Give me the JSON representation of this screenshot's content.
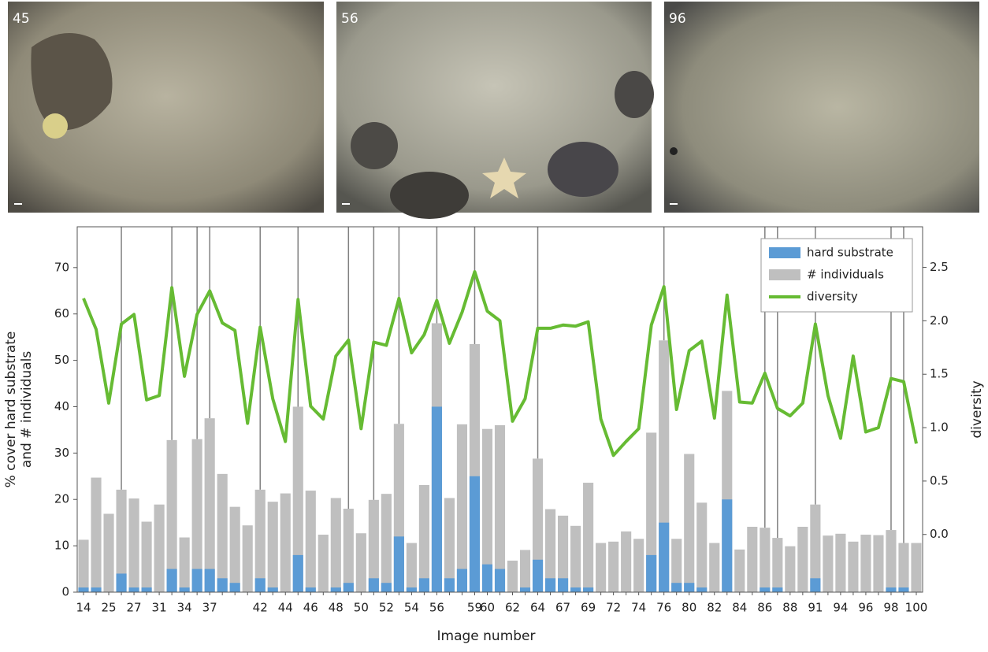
{
  "photos": [
    {
      "label": "45"
    },
    {
      "label": "56"
    },
    {
      "label": "96"
    }
  ],
  "chart_data": {
    "type": "bar",
    "xlabel": "Image number",
    "ylabel": [
      "% cover hard substrate",
      "and # individuals"
    ],
    "y2label": "diversity",
    "categories": [
      "14",
      null,
      "25",
      null,
      "27",
      null,
      "31",
      null,
      "34",
      null,
      "37",
      null,
      null,
      null,
      "42",
      null,
      "44",
      null,
      "46",
      null,
      "48",
      null,
      "50",
      null,
      "52",
      null,
      "54",
      null,
      "56",
      null,
      null,
      "59",
      "60",
      null,
      "62",
      null,
      "64",
      null,
      "67",
      null,
      "69",
      null,
      "72",
      null,
      "74",
      null,
      "76",
      null,
      "80",
      null,
      "82",
      null,
      "84",
      null,
      "86",
      null,
      "88",
      null,
      "91",
      null,
      "94",
      null,
      "96",
      null,
      "98",
      null,
      "100"
    ],
    "series": [
      {
        "name": "# individuals",
        "color": "#bfbfbf",
        "kind": "bar",
        "values": [
          11.3,
          24.7,
          16.9,
          22.1,
          20.2,
          15.2,
          18.9,
          32.8,
          11.8,
          33,
          37.5,
          25.5,
          18.4,
          14.4,
          22.1,
          19.5,
          21.3,
          40,
          21.9,
          12.4,
          20.3,
          18,
          12.7,
          19.9,
          21.2,
          36.3,
          10.6,
          23.1,
          58,
          20.3,
          36.2,
          53.5,
          35.2,
          36,
          6.8,
          9.1,
          28.8,
          17.9,
          16.5,
          14.3,
          23.6,
          10.6,
          10.9,
          13.1,
          11.5,
          34.4,
          54.3,
          11.5,
          29.8,
          19.3,
          10.6,
          43.4,
          9.2,
          14.1,
          13.9,
          11.7,
          9.9,
          14.1,
          18.9,
          12.2,
          12.6,
          10.9,
          12.4,
          12.3,
          13.4,
          10.6,
          10.6
        ]
      },
      {
        "name": "hard substrate",
        "color": "#5b9bd5",
        "kind": "bar",
        "values": [
          1,
          1,
          0,
          4,
          1,
          1,
          0,
          5,
          1,
          5,
          5,
          3,
          2,
          0,
          3,
          1,
          0,
          8,
          1,
          0,
          1,
          2,
          0,
          3,
          2,
          12,
          1,
          3,
          40,
          3,
          5,
          25,
          6,
          5,
          0,
          1,
          7,
          3,
          3,
          1,
          1,
          0,
          0,
          0,
          0,
          8,
          15,
          2,
          2,
          1,
          0,
          20,
          0,
          0,
          1,
          1,
          0,
          0,
          3,
          0,
          0,
          0,
          0,
          0,
          1,
          1,
          0
        ]
      },
      {
        "name": "diversity",
        "color": "#66bb33",
        "kind": "line",
        "axis": "y2",
        "values": [
          2.21,
          1.92,
          1.23,
          1.97,
          2.06,
          1.26,
          1.3,
          2.31,
          1.48,
          2.06,
          2.28,
          1.98,
          1.91,
          1.04,
          1.94,
          1.27,
          0.87,
          2.2,
          1.2,
          1.08,
          1.67,
          1.82,
          0.99,
          1.8,
          1.77,
          2.21,
          1.7,
          1.87,
          2.19,
          1.79,
          2.08,
          2.46,
          2.09,
          2.0,
          1.06,
          1.27,
          1.93,
          1.93,
          1.96,
          1.95,
          1.99,
          1.08,
          0.74,
          0.87,
          0.99,
          1.96,
          2.32,
          1.17,
          1.72,
          1.81,
          1.09,
          2.24,
          1.24,
          1.23,
          1.51,
          1.18,
          1.11,
          1.23,
          1.97,
          1.3,
          0.9,
          1.67,
          0.96,
          1.0,
          1.46,
          1.43,
          0.85
        ]
      }
    ],
    "legend_order": [
      1,
      0,
      2
    ],
    "highlighted_bars": [
      3,
      7,
      9,
      10,
      14,
      17,
      21,
      23,
      25,
      28,
      31,
      36,
      46,
      54,
      55,
      58,
      64,
      65
    ],
    "ylim": [
      0,
      78.8
    ],
    "yticks": [
      0,
      10,
      20,
      30,
      40,
      50,
      60,
      70
    ],
    "y2lim": [
      -0.54,
      2.88
    ],
    "y2ticks": [
      {
        "value": 0,
        "label": "0.0"
      },
      0.5,
      {
        "value": 1,
        "label": "1.0"
      },
      1.5,
      {
        "value": 2,
        "label": "2.0"
      },
      2.5
    ],
    "legend": "upper right",
    "grid": false
  }
}
